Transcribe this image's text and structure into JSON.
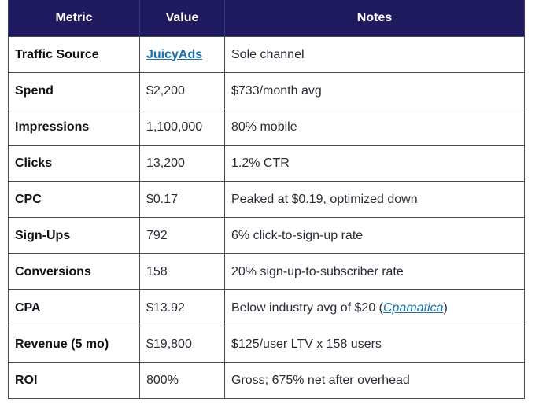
{
  "header": {
    "metric": "Metric",
    "value": "Value",
    "notes": "Notes"
  },
  "rows": [
    {
      "metric": "Traffic Source",
      "value": "JuicyAds",
      "notes": "Sole channel"
    },
    {
      "metric": "Spend",
      "value": "$2,200",
      "notes": "$733/month avg"
    },
    {
      "metric": "Impressions",
      "value": "1,100,000",
      "notes": "80% mobile"
    },
    {
      "metric": "Clicks",
      "value": "13,200",
      "notes": "1.2% CTR"
    },
    {
      "metric": "CPC",
      "value": "$0.17",
      "notes": "Peaked at $0.19, optimized down"
    },
    {
      "metric": "Sign-Ups",
      "value": "792",
      "notes": "6% click-to-sign-up rate"
    },
    {
      "metric": "Conversions",
      "value": "158",
      "notes": "20% sign-up-to-subscriber rate"
    },
    {
      "metric": "CPA",
      "value": "$13.92",
      "notes_prefix": "Below industry avg of $20 (",
      "notes_link": "Cpamatica",
      "notes_suffix": ")"
    },
    {
      "metric": "Revenue (5 mo)",
      "value": "$19,800",
      "notes": "$125/user LTV x 158 users"
    },
    {
      "metric": "ROI",
      "value": "800%",
      "notes": "Gross; 675% net after overhead"
    }
  ],
  "colors": {
    "header_bg": "#1f1b5e",
    "link": "#1a73a8",
    "border": "#4a4a55"
  }
}
